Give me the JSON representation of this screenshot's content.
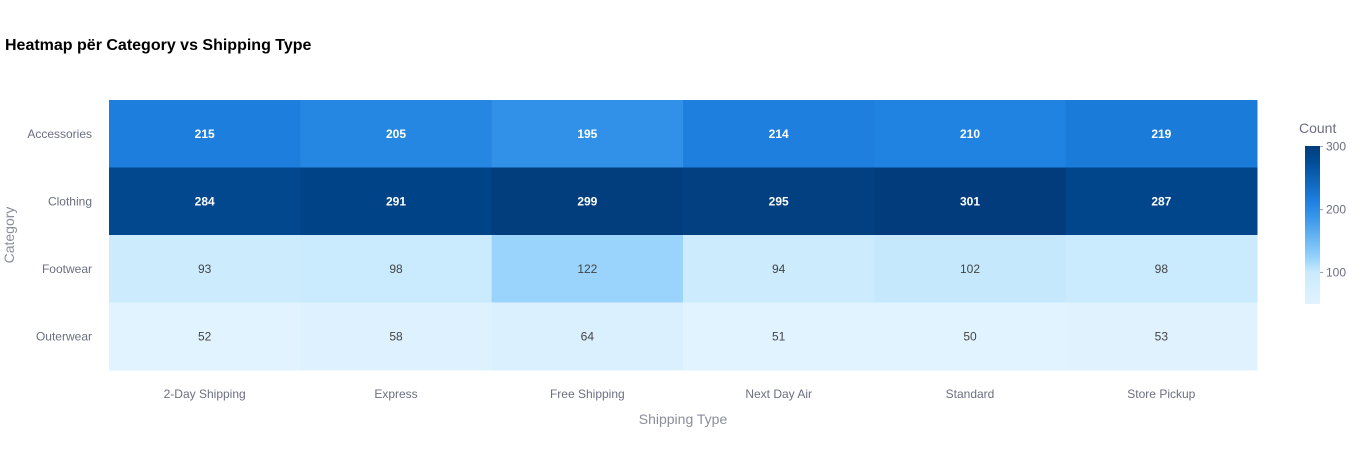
{
  "chart_data": {
    "type": "heatmap",
    "title": "Heatmap për Category vs Shipping Type",
    "xlabel": "Shipping Type",
    "ylabel": "Category",
    "x_categories": [
      "2-Day Shipping",
      "Express",
      "Free Shipping",
      "Next Day Air",
      "Standard",
      "Store Pickup"
    ],
    "y_categories": [
      "Accessories",
      "Clothing",
      "Footwear",
      "Outerwear"
    ],
    "values": [
      [
        215,
        205,
        195,
        214,
        210,
        219
      ],
      [
        284,
        291,
        299,
        295,
        301,
        287
      ],
      [
        93,
        98,
        122,
        94,
        102,
        98
      ],
      [
        52,
        58,
        64,
        51,
        50,
        53
      ]
    ],
    "colorbar": {
      "title": "Count",
      "range": [
        50,
        301
      ],
      "ticks": [
        100,
        200,
        300
      ],
      "stops": [
        {
          "v": 0.0,
          "color": "#e1f3fe"
        },
        {
          "v": 0.2,
          "color": "#c9eafd"
        },
        {
          "v": 0.3,
          "color": "#93d1fc"
        },
        {
          "v": 0.55,
          "color": "#3896ea"
        },
        {
          "v": 0.65,
          "color": "#1e80e0"
        },
        {
          "v": 0.9,
          "color": "#004d97"
        },
        {
          "v": 1.0,
          "color": "#023c7c"
        }
      ]
    },
    "grid": false
  }
}
